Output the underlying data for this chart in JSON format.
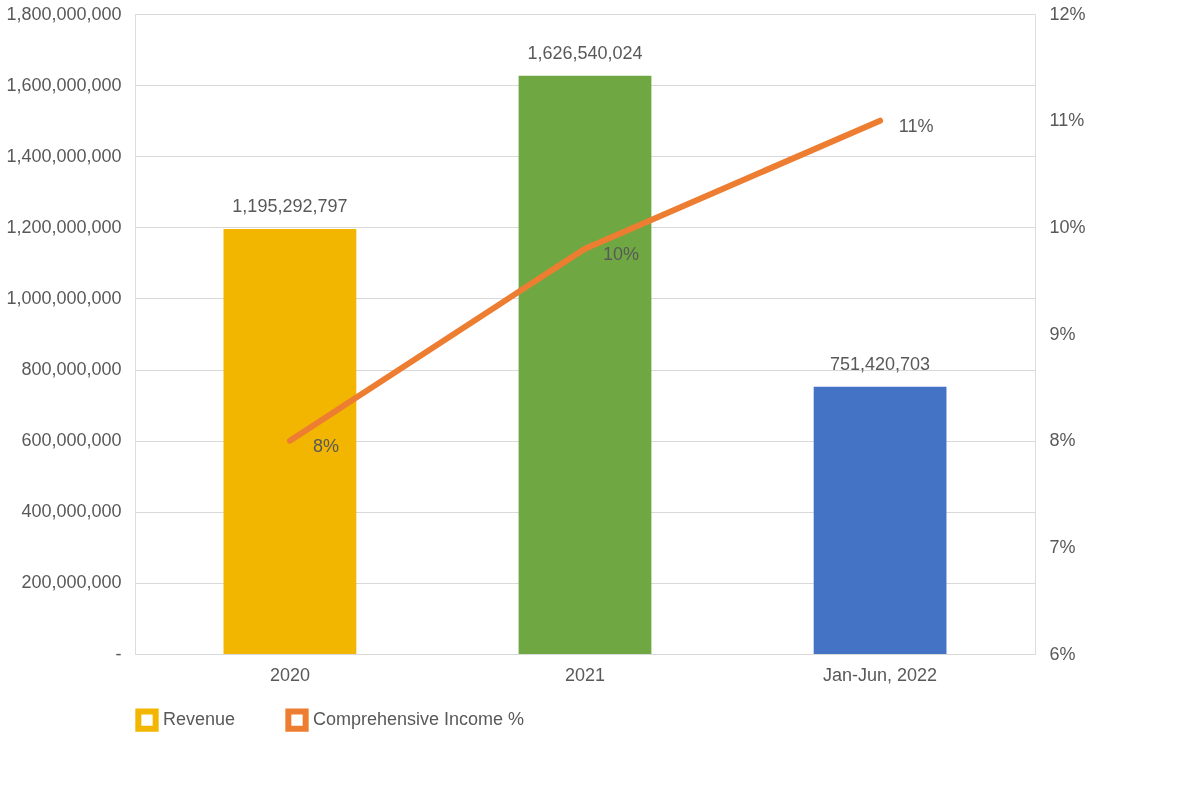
{
  "chart_data": {
    "type": "bar",
    "categories": [
      "2020",
      "2021",
      "Jan-Jun, 2022"
    ],
    "series": [
      {
        "name": "Revenue",
        "color": "#f2b500",
        "colors": [
          "#f2b500",
          "#6fa843",
          "#4472c4"
        ],
        "values": [
          1195292797,
          1626540024,
          751420703
        ],
        "value_labels": [
          "1,195,292,797",
          "1,626,540,024",
          "751,420,703"
        ]
      },
      {
        "name": "Comprehensive Income %",
        "type": "line",
        "axis": "y2",
        "color": "#ed7d31",
        "values": [
          8.0,
          9.8,
          11.0
        ],
        "value_labels": [
          "8%",
          "10%",
          "11%"
        ]
      }
    ],
    "ylim": [
      0,
      1800000000
    ],
    "yticks": [
      {
        "value": 0,
        "label": "-"
      },
      {
        "value": 200000000,
        "label": "200,000,000"
      },
      {
        "value": 400000000,
        "label": "400,000,000"
      },
      {
        "value": 600000000,
        "label": "600,000,000"
      },
      {
        "value": 800000000,
        "label": "800,000,000"
      },
      {
        "value": 1000000000,
        "label": "1,000,000,000"
      },
      {
        "value": 1200000000,
        "label": "1,200,000,000"
      },
      {
        "value": 1400000000,
        "label": "1,400,000,000"
      },
      {
        "value": 1600000000,
        "label": "1,600,000,000"
      },
      {
        "value": 1800000000,
        "label": "1,800,000,000"
      }
    ],
    "y2lim": [
      6,
      12
    ],
    "y2ticks": [
      {
        "value": 6,
        "label": "6%"
      },
      {
        "value": 7,
        "label": "7%"
      },
      {
        "value": 8,
        "label": "8%"
      },
      {
        "value": 9,
        "label": "9%"
      },
      {
        "value": 10,
        "label": "10%"
      },
      {
        "value": 11,
        "label": "11%"
      },
      {
        "value": 12,
        "label": "12%"
      }
    ],
    "grid": "y",
    "legend": "bottom"
  }
}
